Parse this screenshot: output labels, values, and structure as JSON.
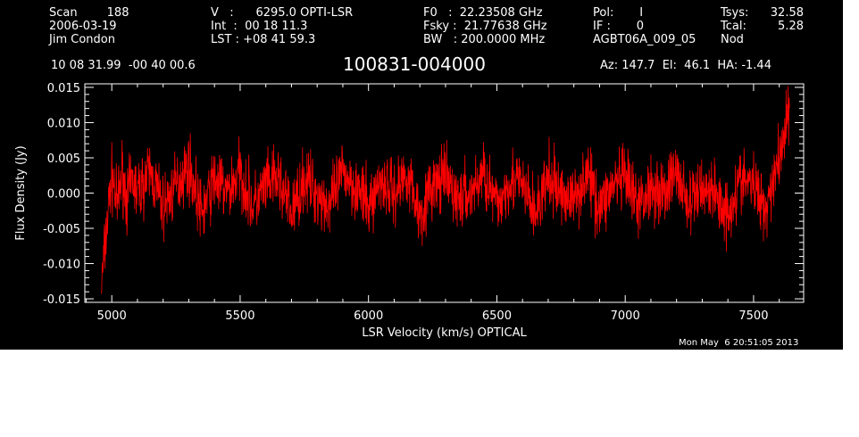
{
  "header": {
    "col1": [
      "Scan        188",
      "2006-03-19",
      "Jim Condon"
    ],
    "col2": [
      "V   :      6295.0 OPTI-LSR",
      "Int  :  00 18 11.3",
      "LST : +08 41 59.3"
    ],
    "col3": [
      "F0   :  22.23508 GHz",
      "Fsky :  21.77638 GHz",
      "BW   : 200.0000 MHz"
    ],
    "col4": [
      "Pol:       I",
      "IF :       0",
      "AGBT06A_009_05"
    ],
    "col5": [
      "Tsys:",
      "Tcal:",
      "Nod"
    ],
    "col6": [
      "32.58",
      "5.28",
      ""
    ],
    "coords": "10 08 31.99  -00 40 00.6",
    "title": "100831-004000",
    "pointing": "Az: 147.7  El:  46.1  HA: -1.44",
    "timestamp": "Mon May  6 20:51:05 2013"
  },
  "chart_data": {
    "type": "line",
    "title": "100831-004000",
    "xlabel": "LSR Velocity (km/s) OPTICAL",
    "ylabel": "Flux Density (Jy)",
    "xlim": [
      4895,
      7695
    ],
    "ylim": [
      -0.0155,
      0.0155
    ],
    "xticks": [
      5000,
      5500,
      6000,
      6500,
      7000,
      7500
    ],
    "xtick_labels": [
      "5000",
      "5500",
      "6000",
      "6500",
      "7000",
      "7500"
    ],
    "yticks": [
      -0.015,
      -0.01,
      -0.005,
      0.0,
      0.005,
      0.01,
      0.015
    ],
    "ytick_labels": [
      "-0.015",
      "-0.010",
      "-0.005",
      "0.000",
      "0.005",
      "0.010",
      "0.015"
    ],
    "grid": false,
    "series": [
      {
        "color": "#ff0000",
        "x": [
          4960,
          4965,
          4970,
          4975,
          4980,
          4985,
          4990,
          4995,
          5000,
          5010,
          5020,
          5040,
          5060,
          5080,
          5100,
          5150,
          5200,
          5250,
          5300,
          5350,
          5400,
          5450,
          5500,
          5550,
          5600,
          5650,
          5700,
          5750,
          5800,
          5850,
          5900,
          5950,
          6000,
          6050,
          6100,
          6150,
          6200,
          6250,
          6300,
          6350,
          6400,
          6450,
          6500,
          6550,
          6600,
          6650,
          6700,
          6750,
          6800,
          6850,
          6900,
          6950,
          7000,
          7050,
          7100,
          7150,
          7200,
          7250,
          7300,
          7350,
          7400,
          7450,
          7500,
          7550,
          7580,
          7600,
          7610,
          7620,
          7630,
          7640
        ],
        "y": [
          -0.013,
          -0.011,
          -0.009,
          -0.007,
          -0.005,
          -0.003,
          -0.001,
          0.001,
          0.002,
          0.001,
          -0.002,
          0.003,
          -0.001,
          0.002,
          0.0,
          0.003,
          -0.002,
          0.001,
          0.004,
          -0.003,
          0.002,
          0.0,
          0.003,
          -0.002,
          0.001,
          0.002,
          -0.003,
          0.002,
          0.0,
          -0.002,
          0.003,
          0.001,
          -0.002,
          0.002,
          0.0,
          0.003,
          -0.003,
          0.001,
          0.002,
          -0.001,
          0.0,
          0.003,
          -0.002,
          0.002,
          0.001,
          -0.003,
          0.002,
          0.0,
          -0.001,
          0.003,
          -0.002,
          0.001,
          0.002,
          -0.002,
          0.001,
          0.0,
          0.003,
          -0.002,
          0.001,
          0.0,
          -0.003,
          0.002,
          0.001,
          -0.002,
          0.003,
          0.005,
          0.007,
          0.009,
          0.011,
          0.012
        ]
      }
    ]
  }
}
